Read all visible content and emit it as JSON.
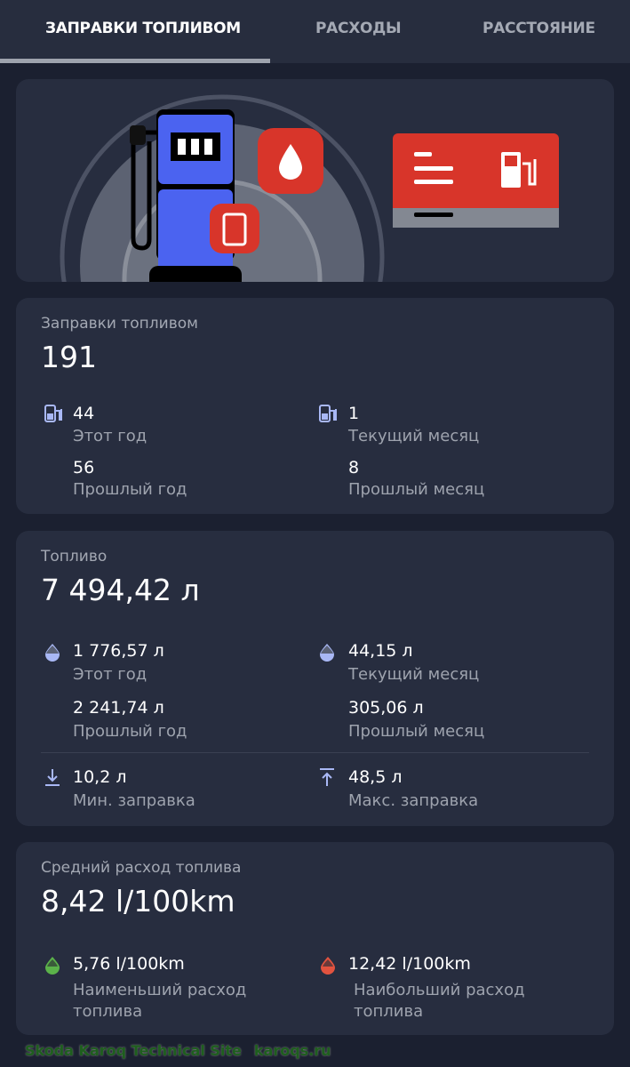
{
  "tabs": [
    {
      "label": "ЗАПРАВКИ ТОПЛИВОМ",
      "active": true
    },
    {
      "label": "РАСХОДЫ"
    },
    {
      "label": "РАССТОЯНИЕ"
    }
  ],
  "refuels": {
    "title": "Заправки топливом",
    "total": "191",
    "this_year": {
      "value": "44",
      "label": "Этот год"
    },
    "last_year": {
      "value": "56",
      "label": "Прошлый год"
    },
    "this_month": {
      "value": "1",
      "label": "Текущий месяц"
    },
    "last_month": {
      "value": "8",
      "label": "Прошлый месяц"
    }
  },
  "fuel": {
    "title": "Топливо",
    "total": "7 494,42 л",
    "this_year": {
      "value": "1 776,57 л",
      "label": "Этот год"
    },
    "last_year": {
      "value": "2 241,74 л",
      "label": "Прошлый год"
    },
    "this_month": {
      "value": "44,15 л",
      "label": "Текущий месяц"
    },
    "last_month": {
      "value": "305,06 л",
      "label": "Прошлый месяц"
    },
    "min": {
      "value": "10,2 л",
      "label": "Мин. заправка"
    },
    "max": {
      "value": "48,5 л",
      "label": "Макс. заправка"
    }
  },
  "consumption": {
    "title": "Средний расход топлива",
    "avg": "8,42 l/100km",
    "min": {
      "value": "5,76 l/100km",
      "label": "Наименьший расход топлива",
      "color": "#5bb24a"
    },
    "max": {
      "value": "12,42 l/100km",
      "label": "Наибольший расход топлива",
      "color": "#e2533f"
    }
  },
  "watermark": {
    "line1": "Skoda Karoq Technical Site",
    "line2": "karoqs.ru"
  },
  "colors": {
    "accent_icon": "#a9b8f5",
    "pump_blue": "#4b63f0",
    "red": "#d8352a"
  }
}
